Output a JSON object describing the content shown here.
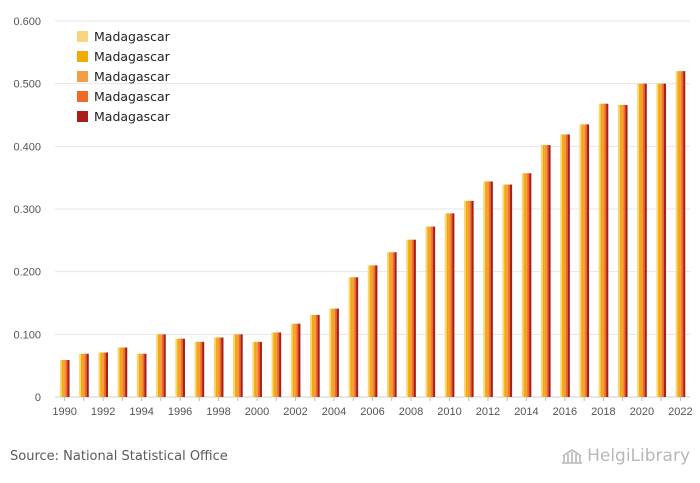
{
  "chart_data": {
    "type": "bar",
    "title": "",
    "xlabel": "",
    "ylabel": "",
    "ylim": [
      0,
      0.6
    ],
    "yticks": [
      "0",
      "0.100",
      "0.200",
      "0.300",
      "0.400",
      "0.500",
      "0.600"
    ],
    "ytick_values": [
      0,
      0.1,
      0.2,
      0.3,
      0.4,
      0.5,
      0.6
    ],
    "categories": [
      "1990",
      "1991",
      "1992",
      "1993",
      "1994",
      "1995",
      "1996",
      "1997",
      "1998",
      "1999",
      "2000",
      "2001",
      "2002",
      "2003",
      "2004",
      "2005",
      "2006",
      "2007",
      "2008",
      "2009",
      "2010",
      "2011",
      "2012",
      "2013",
      "2014",
      "2015",
      "2016",
      "2017",
      "2018",
      "2019",
      "2020",
      "2021",
      "2022"
    ],
    "xtick_labels": [
      "1990",
      "1992",
      "1994",
      "1996",
      "1998",
      "2000",
      "2002",
      "2004",
      "2006",
      "2008",
      "2010",
      "2012",
      "2014",
      "2016",
      "2018",
      "2020",
      "2022"
    ],
    "legend_position": "top-left",
    "grid": true,
    "series": [
      {
        "name": "Madagascar",
        "color": "#f9d580",
        "values": [
          0.059,
          0.069,
          0.071,
          0.079,
          0.069,
          0.1,
          0.093,
          0.088,
          0.095,
          0.1,
          0.088,
          0.103,
          0.117,
          0.131,
          0.141,
          0.191,
          0.21,
          0.231,
          0.251,
          0.272,
          0.293,
          0.313,
          0.344,
          0.339,
          0.357,
          0.402,
          0.419,
          0.435,
          0.468,
          0.466,
          0.5,
          0.5,
          0.52
        ]
      },
      {
        "name": "Madagascar",
        "color": "#f2ac00",
        "values": [
          0.059,
          0.069,
          0.071,
          0.079,
          0.069,
          0.1,
          0.093,
          0.088,
          0.095,
          0.1,
          0.088,
          0.103,
          0.117,
          0.131,
          0.141,
          0.191,
          0.21,
          0.231,
          0.251,
          0.272,
          0.293,
          0.313,
          0.344,
          0.339,
          0.357,
          0.402,
          0.419,
          0.435,
          0.468,
          0.466,
          0.5,
          0.5,
          0.52
        ]
      },
      {
        "name": "Madagascar",
        "color": "#f59d45",
        "values": [
          0.059,
          0.069,
          0.071,
          0.079,
          0.069,
          0.1,
          0.093,
          0.088,
          0.095,
          0.1,
          0.088,
          0.103,
          0.117,
          0.131,
          0.141,
          0.191,
          0.21,
          0.231,
          0.251,
          0.272,
          0.293,
          0.313,
          0.344,
          0.339,
          0.357,
          0.402,
          0.419,
          0.435,
          0.468,
          0.466,
          0.5,
          0.5,
          0.52
        ]
      },
      {
        "name": "Madagascar",
        "color": "#ee6a26",
        "values": [
          0.059,
          0.069,
          0.071,
          0.079,
          0.069,
          0.1,
          0.093,
          0.088,
          0.095,
          0.1,
          0.088,
          0.103,
          0.117,
          0.131,
          0.141,
          0.191,
          0.21,
          0.231,
          0.251,
          0.272,
          0.293,
          0.313,
          0.344,
          0.339,
          0.357,
          0.402,
          0.419,
          0.435,
          0.468,
          0.466,
          0.5,
          0.5,
          0.52
        ]
      },
      {
        "name": "Madagascar",
        "color": "#a91d1d",
        "values": [
          0.059,
          0.069,
          0.071,
          0.079,
          0.069,
          0.1,
          0.093,
          0.088,
          0.095,
          0.1,
          0.088,
          0.103,
          0.117,
          0.131,
          0.141,
          0.191,
          0.21,
          0.231,
          0.251,
          0.272,
          0.293,
          0.313,
          0.344,
          0.339,
          0.357,
          0.402,
          0.419,
          0.435,
          0.468,
          0.466,
          0.5,
          0.5,
          0.52
        ]
      }
    ]
  },
  "footer": {
    "source": "Source: National Statistical Office",
    "logo_text": "HelgiLibrary"
  }
}
